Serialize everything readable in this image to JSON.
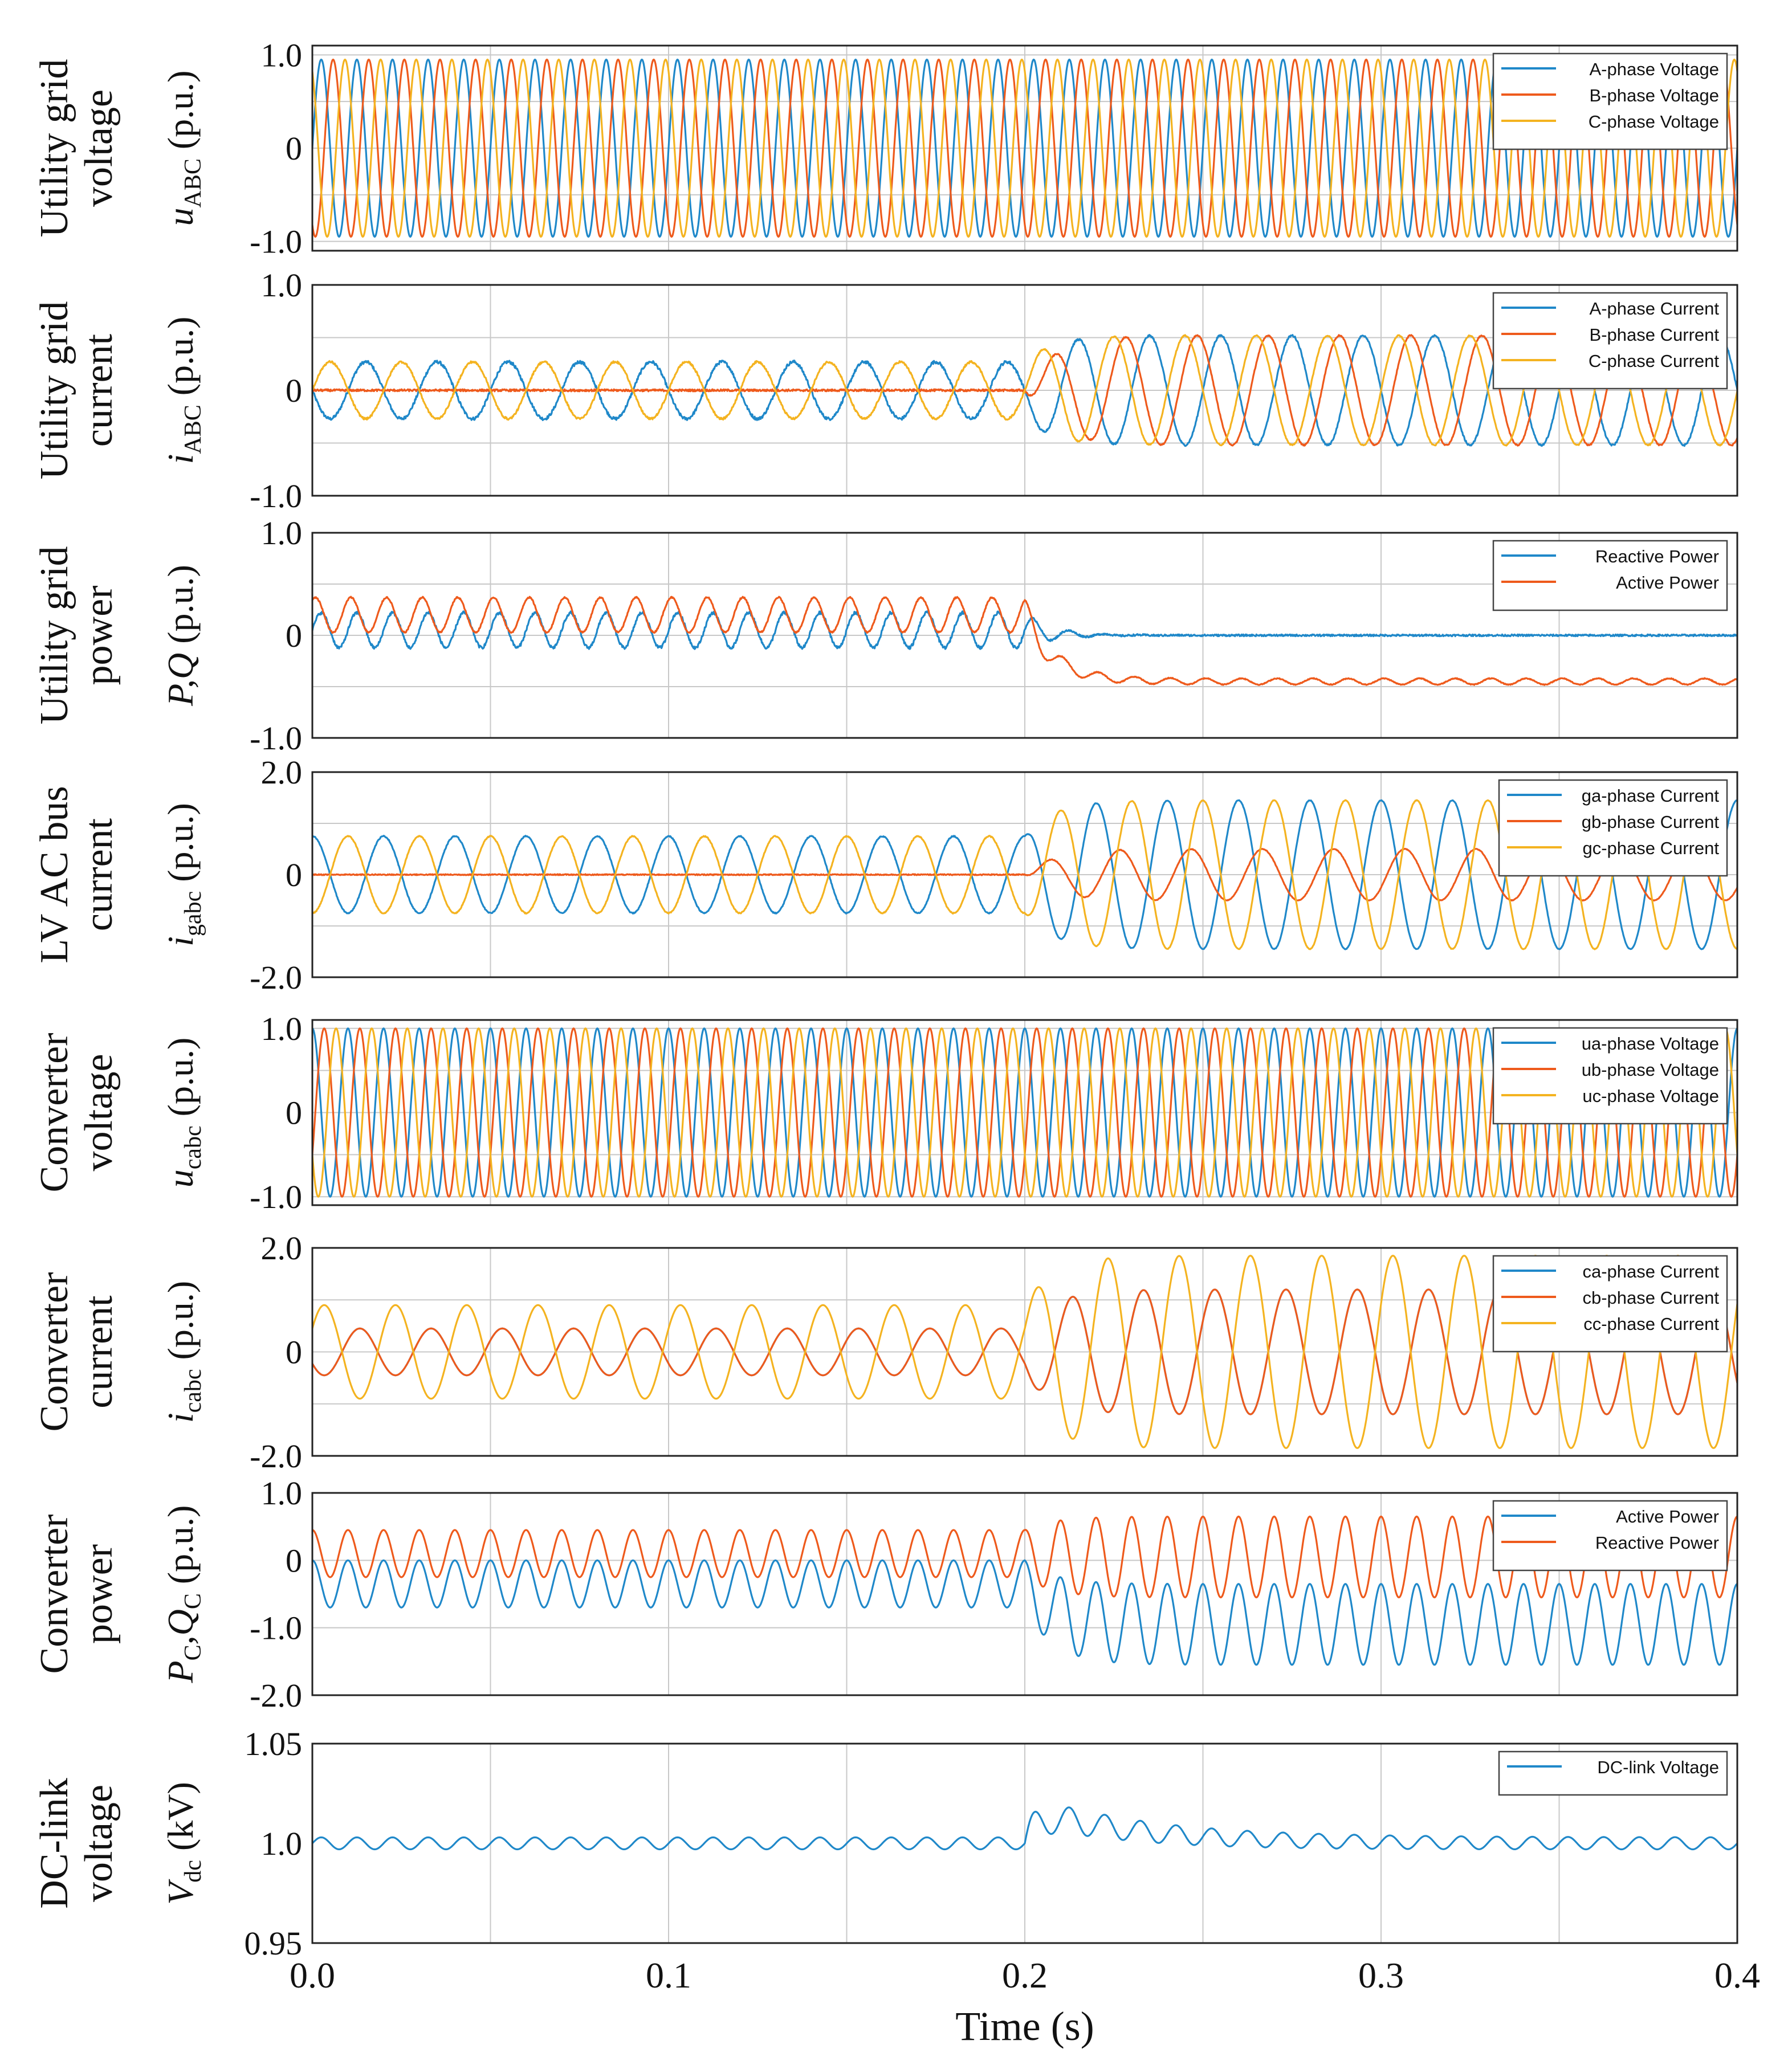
{
  "figure": {
    "xlabel": "Time (s)",
    "x_range": [
      0.0,
      0.4
    ],
    "x_ticks": [
      "0.0",
      "0.1",
      "0.2",
      "0.3",
      "0.4"
    ],
    "x_grid": [
      0.0,
      0.05,
      0.1,
      0.15,
      0.2,
      0.25,
      0.3,
      0.35,
      0.4
    ],
    "disturbance_time": 0.2
  },
  "chart_data": [
    {
      "type": "line",
      "row_label": [
        "Utility grid",
        "voltage"
      ],
      "ylabel": {
        "main": "u",
        "sub": "ABC",
        "unit": " (p.u.)"
      },
      "ylim": [
        -1.1,
        1.1
      ],
      "yticks": [
        {
          "value": 1.0,
          "label": "1.0"
        },
        {
          "value": 0,
          "label": "0"
        },
        {
          "value": -1.0,
          "label": "-1.0"
        }
      ],
      "ygrid": [
        1.0,
        0.5,
        0,
        -0.5,
        -1.0
      ],
      "x": [
        0.0,
        0.4
      ],
      "series": [
        {
          "name": "A-phase Voltage",
          "color": "#1f88c9",
          "kind": "sine",
          "freq_hz": 100,
          "phase_deg": 0,
          "amp_before": 0.95,
          "amp_after": 0.95
        },
        {
          "name": "B-phase Voltage",
          "color": "#ee5a1c",
          "kind": "sine",
          "freq_hz": 100,
          "phase_deg": -120,
          "amp_before": 0.95,
          "amp_after": 0.95
        },
        {
          "name": "C-phase Voltage",
          "color": "#f4b320",
          "kind": "sine",
          "freq_hz": 100,
          "phase_deg": 120,
          "amp_before": 0.95,
          "amp_after": 0.95
        }
      ]
    },
    {
      "type": "line",
      "row_label": [
        "Utility grid",
        "current"
      ],
      "ylabel": {
        "main": "i",
        "sub": "ABC",
        "unit": " (p.u.)"
      },
      "ylim": [
        -1.0,
        1.0
      ],
      "yticks": [
        {
          "value": 1.0,
          "label": "1.0"
        },
        {
          "value": 0,
          "label": "0"
        },
        {
          "value": -1.0,
          "label": "-1.0"
        }
      ],
      "ygrid": [
        0.5,
        0,
        -0.5
      ],
      "x": [
        0.0,
        0.4
      ],
      "series": [
        {
          "name": "A-phase Current",
          "color": "#1f88c9",
          "kind": "sine",
          "freq_hz": 50,
          "phase_deg": 180,
          "amp_before": 0.27,
          "amp_after": 0.52,
          "noise": 0.03
        },
        {
          "name": "B-phase Current",
          "color": "#ee5a1c",
          "kind": "sine",
          "freq_hz": 50,
          "phase_deg": -60,
          "amp_before": 0.0,
          "amp_after": 0.52,
          "noise": 0.02
        },
        {
          "name": "C-phase Current",
          "color": "#f4b320",
          "kind": "sine",
          "freq_hz": 50,
          "phase_deg": 0,
          "amp_before": 0.27,
          "amp_after": 0.52,
          "noise": 0.02
        }
      ]
    },
    {
      "type": "line",
      "row_label": [
        "Utility grid",
        "power"
      ],
      "ylabel": {
        "main": "P,Q",
        "sub": "",
        "unit": " (p.u.)"
      },
      "ylim": [
        -1.0,
        1.0
      ],
      "yticks": [
        {
          "value": 1.0,
          "label": "1.0"
        },
        {
          "value": 0,
          "label": "0"
        },
        {
          "value": -1.0,
          "label": "-1.0"
        }
      ],
      "ygrid": [
        0.5,
        0,
        -0.5
      ],
      "x": [
        0.0,
        0.4
      ],
      "series": [
        {
          "name": "Reactive Power",
          "color": "#1f88c9",
          "kind": "osc",
          "freq_hz": 100,
          "phase_deg": 0,
          "off_before": 0.05,
          "amp_before": 0.17,
          "off_after": 0.0,
          "amp_after": 0.0,
          "noise": 0.03
        },
        {
          "name": "Active Power",
          "color": "#ee5a1c",
          "kind": "osc",
          "freq_hz": 100,
          "phase_deg": 60,
          "off_before": 0.2,
          "amp_before": 0.17,
          "off_after": -0.45,
          "amp_after": 0.03,
          "noise": 0.015
        }
      ]
    },
    {
      "type": "line",
      "row_label": [
        "LV AC bus",
        "current"
      ],
      "ylabel": {
        "main": "i",
        "sub": "gabc",
        "unit": " (p.u.)"
      },
      "ylim": [
        -2.0,
        2.0
      ],
      "yticks": [
        {
          "value": 2.0,
          "label": "2.0"
        },
        {
          "value": 0,
          "label": "0"
        },
        {
          "value": -2.0,
          "label": "-2.0"
        }
      ],
      "ygrid": [
        1.0,
        0,
        -1.0
      ],
      "x": [
        0.0,
        0.4
      ],
      "series": [
        {
          "name": "ga-phase Current",
          "color": "#1f88c9",
          "kind": "sine",
          "freq_hz": 50,
          "phase_deg": 90,
          "amp_before": 0.75,
          "amp_after": 1.45,
          "noise": 0.02
        },
        {
          "name": "gb-phase Current",
          "color": "#ee5a1c",
          "kind": "sine",
          "freq_hz": 50,
          "phase_deg": -30,
          "amp_before": 0.0,
          "amp_after": 0.5,
          "noise": 0.02
        },
        {
          "name": "gc-phase Current",
          "color": "#f4b320",
          "kind": "sine",
          "freq_hz": 50,
          "phase_deg": -90,
          "amp_before": 0.75,
          "amp_after": 1.45,
          "noise": 0.02
        }
      ]
    },
    {
      "type": "line",
      "row_label": [
        "Converter",
        "voltage"
      ],
      "ylabel": {
        "main": "u",
        "sub": "cabc",
        "unit": " (p.u.)"
      },
      "ylim": [
        -1.1,
        1.1
      ],
      "yticks": [
        {
          "value": 1.0,
          "label": "1.0"
        },
        {
          "value": 0,
          "label": "0"
        },
        {
          "value": -1.0,
          "label": "-1.0"
        }
      ],
      "ygrid": [
        1.0,
        0.5,
        0,
        -0.5,
        -1.0
      ],
      "x": [
        0.0,
        0.4
      ],
      "series": [
        {
          "name": "ua-phase Voltage",
          "color": "#1f88c9",
          "kind": "sine",
          "freq_hz": 100,
          "phase_deg": 90,
          "amp_before": 1.0,
          "amp_after": 1.0
        },
        {
          "name": "ub-phase Voltage",
          "color": "#ee5a1c",
          "kind": "sine",
          "freq_hz": 100,
          "phase_deg": -30,
          "amp_before": 1.0,
          "amp_after": 1.0
        },
        {
          "name": "uc-phase Voltage",
          "color": "#f4b320",
          "kind": "sine",
          "freq_hz": 100,
          "phase_deg": 210,
          "amp_before": 1.0,
          "amp_after": 1.0
        }
      ]
    },
    {
      "type": "line",
      "row_label": [
        "Converter",
        "current"
      ],
      "ylabel": {
        "main": "i",
        "sub": "cabc",
        "unit": " (p.u.)"
      },
      "ylim": [
        -2.0,
        2.0
      ],
      "yticks": [
        {
          "value": 2.0,
          "label": "2.0"
        },
        {
          "value": 0,
          "label": "0"
        },
        {
          "value": -2.0,
          "label": "-2.0"
        }
      ],
      "ygrid": [
        1.0,
        0,
        -1.0
      ],
      "x": [
        0.0,
        0.4
      ],
      "series": [
        {
          "name": "ca-phase Current",
          "color": "#1f88c9",
          "kind": "sine",
          "freq_hz": 50,
          "phase_deg": 210,
          "amp_before": 0.45,
          "amp_after": 1.2
        },
        {
          "name": "cb-phase Current",
          "color": "#ee5a1c",
          "kind": "sine",
          "freq_hz": 50,
          "phase_deg": 210,
          "amp_before": 0.45,
          "amp_after": 1.2
        },
        {
          "name": "cc-phase Current",
          "color": "#f4b320",
          "kind": "sine",
          "freq_hz": 50,
          "phase_deg": 30,
          "amp_before": 0.9,
          "amp_after": 1.85
        }
      ]
    },
    {
      "type": "line",
      "row_label": [
        "Converter",
        "power"
      ],
      "ylabel": {
        "main": "P",
        "sub": "C",
        "main2": ",Q",
        "sub2": "C",
        "unit": " (p.u.)"
      },
      "ylim": [
        -2.0,
        1.0
      ],
      "yticks": [
        {
          "value": 1.0,
          "label": "1.0"
        },
        {
          "value": 0,
          "label": "0"
        },
        {
          "value": -1.0,
          "label": "-1.0"
        },
        {
          "value": -2.0,
          "label": "-2.0"
        }
      ],
      "ygrid": [
        0,
        -1.0
      ],
      "x": [
        0.0,
        0.4
      ],
      "series": [
        {
          "name": "Active Power",
          "color": "#1f88c9",
          "kind": "osc",
          "freq_hz": 100,
          "phase_deg": 90,
          "off_before": -0.35,
          "amp_before": 0.35,
          "off_after": -0.95,
          "amp_after": 0.6
        },
        {
          "name": "Reactive Power",
          "color": "#ee5a1c",
          "kind": "osc",
          "freq_hz": 100,
          "phase_deg": 90,
          "off_before": 0.1,
          "amp_before": 0.35,
          "off_after": 0.05,
          "amp_after": 0.6
        }
      ]
    },
    {
      "type": "line",
      "row_label": [
        "DC-link",
        "voltage"
      ],
      "ylabel": {
        "main": "V",
        "sub": "dc",
        "unit": " (kV)"
      },
      "ylim": [
        0.95,
        1.05
      ],
      "yticks": [
        {
          "value": 1.05,
          "label": "1.05"
        },
        {
          "value": 1.0,
          "label": "1.0"
        },
        {
          "value": 0.95,
          "label": "0.95"
        }
      ],
      "ygrid": [],
      "x": [
        0.0,
        0.4
      ],
      "series": [
        {
          "name": "DC-link Voltage",
          "color": "#1f88c9",
          "kind": "dc",
          "freq_hz": 100,
          "phase_deg": 0,
          "base": 1.0,
          "amp_before": 0.003,
          "amp_after": 0.003,
          "step": 0.018,
          "decay_s": 0.03
        }
      ]
    }
  ]
}
